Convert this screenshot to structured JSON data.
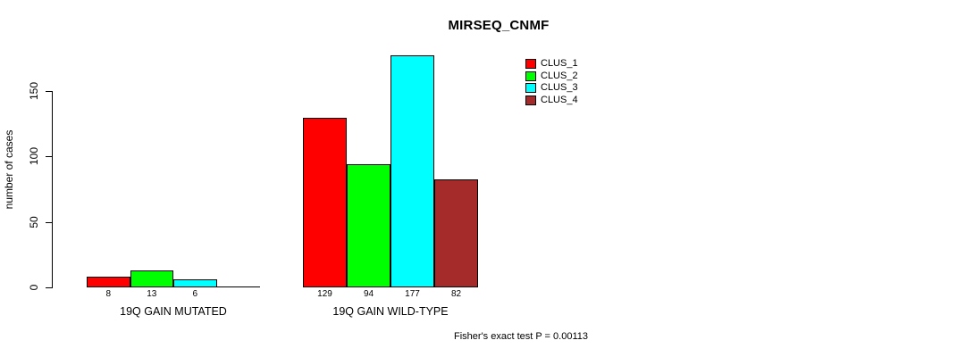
{
  "chart_data": {
    "type": "bar",
    "title": "MIRSEQ_CNMF",
    "ylabel": "number of cases",
    "xlabel": "",
    "yticks": [
      0,
      50,
      100,
      150
    ],
    "ylim": [
      0,
      180
    ],
    "grid": false,
    "legend_position": "top-right",
    "clusters": [
      {
        "name": "CLUS_1",
        "color": "#ff0000"
      },
      {
        "name": "CLUS_2",
        "color": "#00ff00"
      },
      {
        "name": "CLUS_3",
        "color": "#00ffff"
      },
      {
        "name": "CLUS_4",
        "color": "#a52a2a"
      }
    ],
    "groups": [
      {
        "label": "19Q GAIN MUTATED",
        "bars": [
          {
            "cluster": "CLUS_1",
            "value": 8,
            "value_label": "8"
          },
          {
            "cluster": "CLUS_2",
            "value": 13,
            "value_label": "13"
          },
          {
            "cluster": "CLUS_3",
            "value": 6,
            "value_label": "6"
          },
          {
            "cluster": "CLUS_4",
            "value": 0,
            "value_label": ""
          }
        ]
      },
      {
        "label": "19Q GAIN WILD-TYPE",
        "bars": [
          {
            "cluster": "CLUS_1",
            "value": 129,
            "value_label": "129"
          },
          {
            "cluster": "CLUS_2",
            "value": 94,
            "value_label": "94"
          },
          {
            "cluster": "CLUS_3",
            "value": 177,
            "value_label": "177"
          },
          {
            "cluster": "CLUS_4",
            "value": 82,
            "value_label": "82"
          }
        ]
      }
    ],
    "footnote": "Fisher's exact test P = 0.00113"
  }
}
